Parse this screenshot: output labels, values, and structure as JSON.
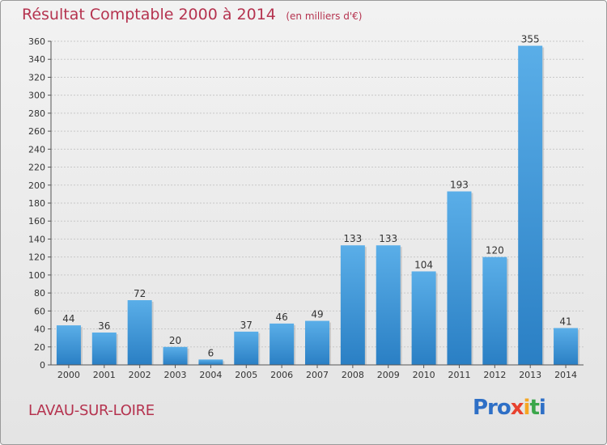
{
  "title": "Résultat Comptable 2000 à 2014",
  "unit": "(en milliers d'€)",
  "commune": "LAVAU-SUR-LOIRE",
  "logo": {
    "p1": "Pro",
    "p2": "x",
    "p3": "i",
    "p4": "t",
    "p5": "i"
  },
  "colors": {
    "bar_light": "#5aaee8",
    "bar_dark": "#2a7fc4",
    "title": "#b5334f"
  },
  "chart_data": {
    "type": "bar",
    "categories": [
      "2000",
      "2001",
      "2002",
      "2003",
      "2004",
      "2005",
      "2006",
      "2007",
      "2008",
      "2009",
      "2010",
      "2011",
      "2012",
      "2013",
      "2014"
    ],
    "values": [
      44,
      36,
      72,
      20,
      6,
      37,
      46,
      49,
      133,
      133,
      104,
      193,
      120,
      355,
      41
    ],
    "ylim": [
      0,
      360
    ],
    "yticks": [
      0,
      20,
      40,
      60,
      80,
      100,
      120,
      140,
      160,
      180,
      200,
      220,
      240,
      260,
      280,
      300,
      320,
      340,
      360
    ],
    "grid": true
  }
}
